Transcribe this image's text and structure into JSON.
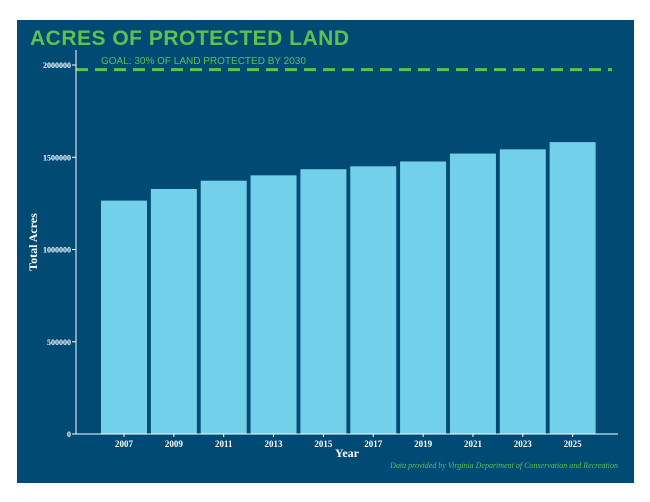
{
  "chart_data": {
    "type": "bar",
    "title": "ACRES OF PROTECTED LAND",
    "xlabel": "Year",
    "ylabel": "Total Acres",
    "categories": [
      "2007",
      "2009",
      "2011",
      "2013",
      "2015",
      "2017",
      "2019",
      "2021",
      "2023",
      "2025"
    ],
    "values": [
      1265000,
      1328000,
      1373000,
      1402000,
      1435000,
      1451000,
      1477000,
      1520000,
      1543000,
      1582000
    ],
    "yticks": [
      "0",
      "500000",
      "1000000",
      "1500000",
      "2000000"
    ],
    "ylim": [
      0,
      2000000
    ],
    "goal": {
      "value": 1975000,
      "label": "GOAL: 30% OF LAND PROTECTED BY 2030"
    },
    "source": "Data provided by Virginia Department of Conservation and Recreation",
    "grid": false
  },
  "colors": {
    "background": "#004a73",
    "bar": "#72d0eb",
    "accent": "#5fc14e",
    "axis": "#ffffff"
  }
}
